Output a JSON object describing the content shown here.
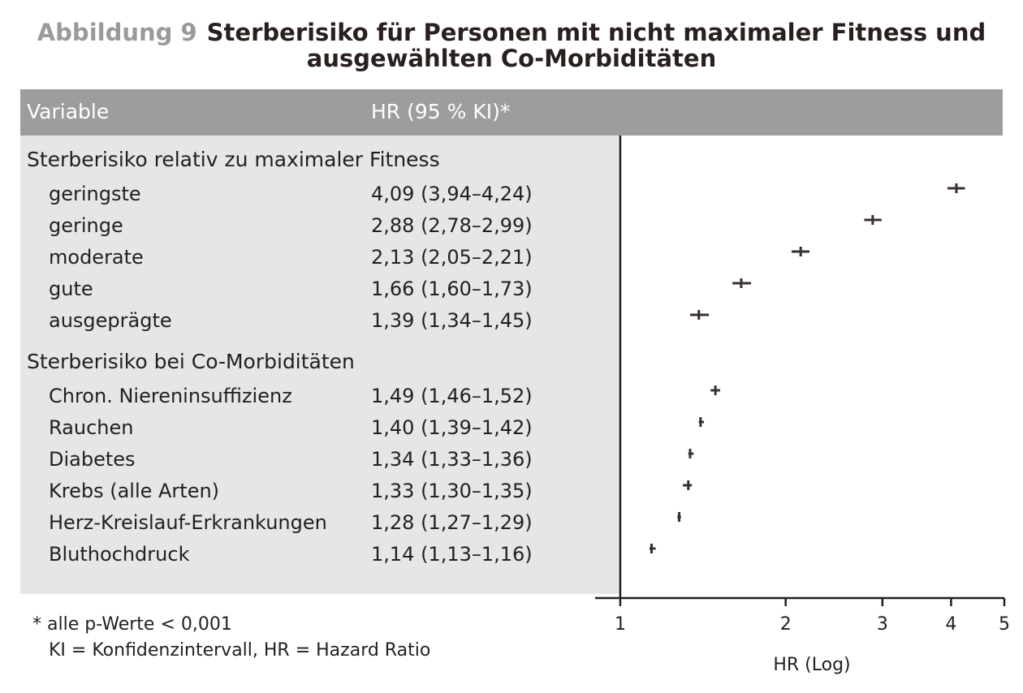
{
  "chart_data": {
    "type": "forest",
    "figure_label": "Abbildung 9",
    "title": "Sterberisiko für Personen mit nicht maximaler Fitness und ausgewählten Co-Morbiditäten",
    "columns": [
      "Variable",
      "HR (95 % KI)*"
    ],
    "groups": [
      {
        "name": "Sterberisiko relativ zu maximaler Fitness",
        "categories": [
          "geringste",
          "geringe",
          "moderate",
          "gute",
          "ausgeprägte"
        ],
        "values": [
          4.09,
          2.88,
          2.13,
          1.66,
          1.39
        ],
        "lower": [
          3.94,
          2.78,
          2.05,
          1.6,
          1.34
        ],
        "upper": [
          4.24,
          2.99,
          2.21,
          1.73,
          1.45
        ],
        "value_labels": [
          "4,09 (3,94–4,24)",
          "2,88 (2,78–2,99)",
          "2,13 (2,05–2,21)",
          "1,66 (1,60–1,73)",
          "1,39 (1,34–1,45)"
        ]
      },
      {
        "name": "Sterberisiko bei Co-Morbiditäten",
        "categories": [
          "Chron. Niereninsuffizienz",
          "Rauchen",
          "Diabetes",
          "Krebs (alle Arten)",
          "Herz-Kreislauf-Erkrankungen",
          "Bluthochdruck"
        ],
        "values": [
          1.49,
          1.4,
          1.34,
          1.33,
          1.28,
          1.14
        ],
        "lower": [
          1.46,
          1.39,
          1.33,
          1.3,
          1.27,
          1.13
        ],
        "upper": [
          1.52,
          1.42,
          1.36,
          1.35,
          1.29,
          1.16
        ],
        "value_labels": [
          "1,49 (1,46–1,52)",
          "1,40 (1,39–1,42)",
          "1,34 (1,33–1,36)",
          "1,33 (1,30–1,35)",
          "1,28 (1,27–1,29)",
          "1,14 (1,13–1,16)"
        ]
      }
    ],
    "xlabel": "HR (Log)",
    "xscale": "log",
    "xlim": [
      0.9,
      5
    ],
    "xticks": [
      1,
      2,
      3,
      4,
      5
    ],
    "color": "#3a3030",
    "footnotes": [
      "* alle p-Werte < 0,001",
      "KI = Konfidenzintervall, HR = Hazard Ratio"
    ]
  }
}
